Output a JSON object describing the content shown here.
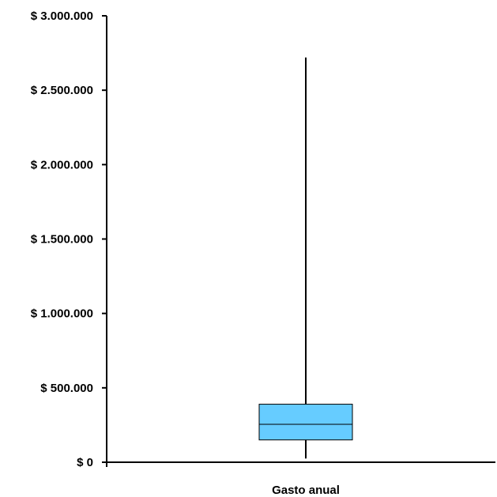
{
  "chart_data": {
    "type": "box",
    "title": "",
    "xlabel": "",
    "ylabel": "",
    "categories": [
      "Gasto anual"
    ],
    "boxes": [
      {
        "category": "Gasto anual",
        "min": 25000,
        "q1": 150000,
        "median": 255000,
        "q3": 390000,
        "max": 2720000
      }
    ],
    "ylim": [
      0,
      3000000
    ],
    "yticks": [
      0,
      500000,
      1000000,
      1500000,
      2000000,
      2500000,
      3000000
    ],
    "ytick_labels": [
      "$ 0",
      "$ 500.000",
      "$ 1.000.000",
      "$ 1.500.000",
      "$ 2.000.000",
      "$ 2.500.000",
      "$ 3.000.000"
    ],
    "grid": false,
    "legend": "none",
    "colors": {
      "box_fill": "#66CCFF",
      "line": "#000000"
    }
  }
}
